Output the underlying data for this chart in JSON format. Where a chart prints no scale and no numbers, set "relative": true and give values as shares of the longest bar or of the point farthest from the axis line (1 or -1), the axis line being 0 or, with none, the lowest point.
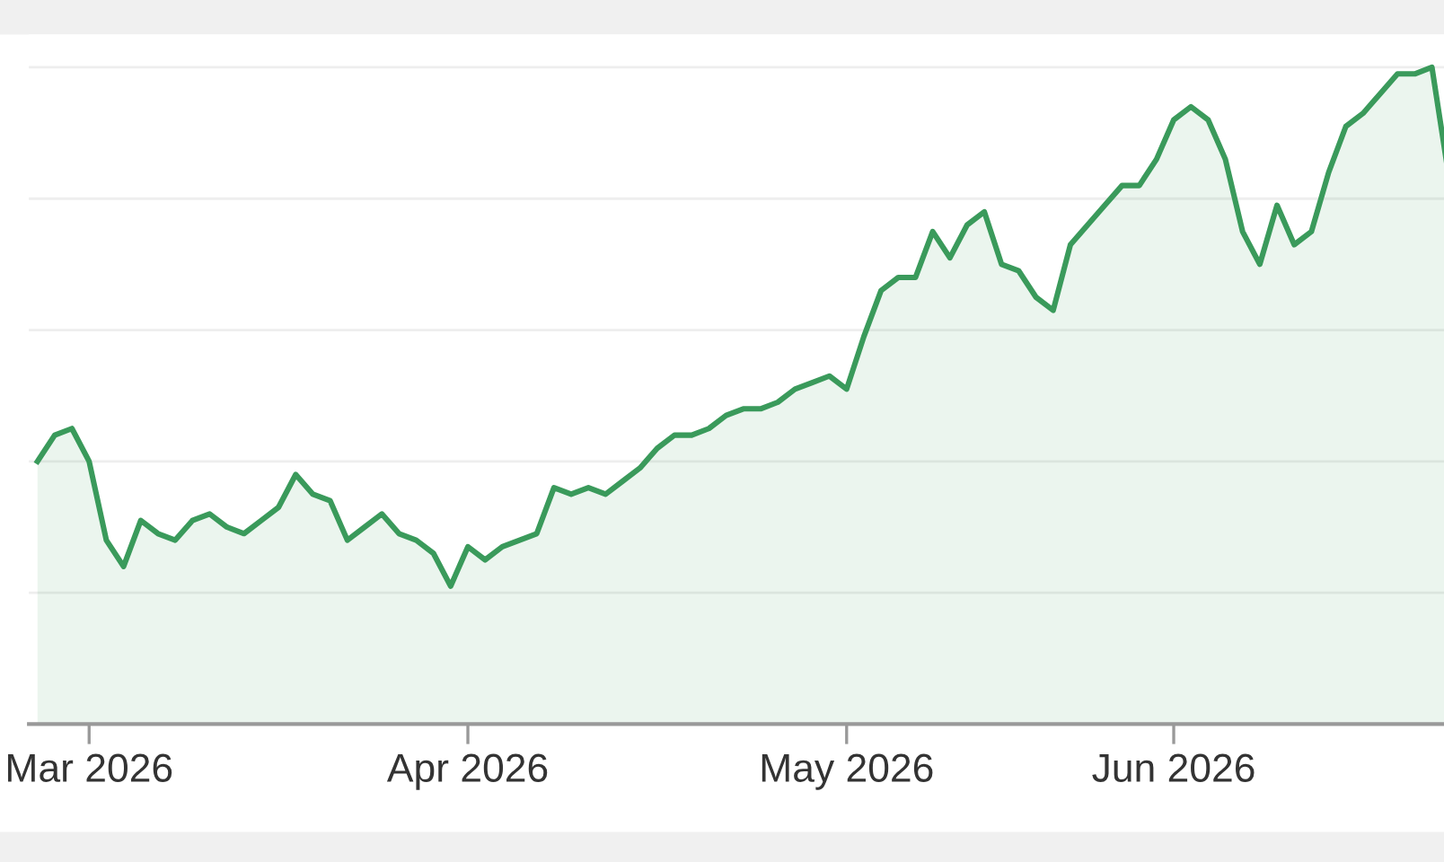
{
  "chart_data": {
    "type": "area",
    "relative": true,
    "grid": "y",
    "categories": [
      null,
      null,
      null,
      "Mar 2026",
      null,
      null,
      null,
      null,
      null,
      null,
      null,
      null,
      null,
      null,
      null,
      null,
      null,
      null,
      null,
      null,
      null,
      null,
      null,
      null,
      null,
      "Apr 2026",
      null,
      null,
      null,
      null,
      null,
      null,
      null,
      null,
      null,
      null,
      null,
      null,
      null,
      null,
      null,
      null,
      null,
      null,
      null,
      null,
      null,
      "May 2026",
      null,
      null,
      null,
      null,
      null,
      null,
      null,
      null,
      null,
      null,
      null,
      null,
      null,
      null,
      null,
      null,
      null,
      null,
      "Jun 2026",
      null,
      null,
      null,
      null,
      null,
      null,
      null,
      null,
      null,
      null,
      null,
      null,
      null,
      null,
      null,
      null
    ],
    "series": [
      {
        "color": "#3a9a5b",
        "values": [
          0.4,
          0.44,
          0.45,
          0.4,
          0.28,
          0.24,
          0.31,
          0.29,
          0.28,
          0.31,
          0.32,
          0.3,
          0.29,
          0.31,
          0.33,
          0.38,
          0.35,
          0.34,
          0.28,
          0.3,
          0.32,
          0.29,
          0.28,
          0.26,
          0.21,
          0.27,
          0.25,
          0.27,
          0.28,
          0.29,
          0.36,
          0.35,
          0.36,
          0.35,
          0.37,
          0.39,
          0.42,
          0.44,
          0.44,
          0.45,
          0.47,
          0.48,
          0.48,
          0.49,
          0.51,
          0.52,
          0.53,
          0.51,
          0.59,
          0.66,
          0.68,
          0.68,
          0.75,
          0.71,
          0.76,
          0.78,
          0.7,
          0.69,
          0.65,
          0.63,
          0.73,
          0.76,
          0.79,
          0.82,
          0.82,
          0.86,
          0.92,
          0.94,
          0.92,
          0.86,
          0.75,
          0.7,
          0.79,
          0.73,
          0.75,
          0.84,
          0.91,
          0.93,
          0.96,
          0.99,
          0.99,
          1.0,
          0.83
        ]
      }
    ]
  }
}
